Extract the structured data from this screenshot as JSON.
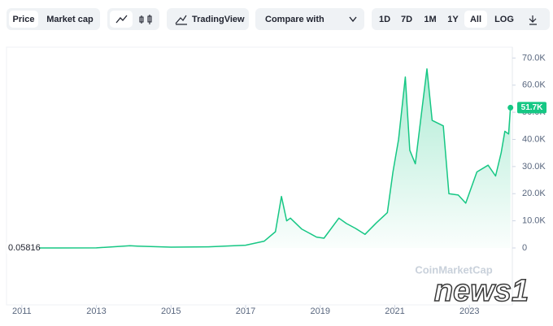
{
  "toolbar": {
    "price": "Price",
    "market_cap": "Market cap",
    "tradingview": "TradingView",
    "compare": "Compare with",
    "ranges": [
      "1D",
      "7D",
      "1M",
      "1Y",
      "All",
      "LOG"
    ]
  },
  "watermarks": {
    "source": "CoinMarketCap",
    "agency": "news1"
  },
  "chart_data": {
    "type": "line",
    "series": [
      {
        "name": "Price",
        "color": "#16c784",
        "x": [
          2010.6,
          2012,
          2013,
          2013.9,
          2014.1,
          2015,
          2016,
          2017,
          2017.5,
          2017.8,
          2017.96,
          2018.1,
          2018.2,
          2018.5,
          2018.9,
          2019.1,
          2019.5,
          2019.7,
          2019.95,
          2020.2,
          2020.5,
          2020.8,
          2020.95,
          2021.1,
          2021.28,
          2021.4,
          2021.55,
          2021.7,
          2021.86,
          2022.0,
          2022.3,
          2022.45,
          2022.7,
          2022.9,
          2023.2,
          2023.5,
          2023.7,
          2023.85,
          2023.95,
          2024.05,
          2024.1
        ],
        "values": [
          0.06,
          5,
          13,
          800,
          700,
          300,
          430,
          1000,
          2500,
          6000,
          19000,
          10000,
          11000,
          7000,
          4000,
          3600,
          11000,
          9000,
          7200,
          5000,
          9200,
          13000,
          28000,
          40000,
          63000,
          36000,
          31000,
          48000,
          66000,
          47000,
          45000,
          20000,
          19500,
          16500,
          28000,
          30500,
          26500,
          35000,
          43000,
          42000,
          51700
        ]
      }
    ],
    "start_label": "0.05816",
    "last_label": "51.7K",
    "xlim": [
      2010.59,
      2024.15
    ],
    "xticks": [
      2011,
      2013,
      2015,
      2017,
      2019,
      2021,
      2023
    ],
    "ylim": [
      -3000,
      74000
    ],
    "yticks": [
      0,
      {
        "value": 10000,
        "label": "10.0K"
      },
      {
        "value": 20000,
        "label": "20.0K"
      },
      {
        "value": 30000,
        "label": "30.0K"
      },
      {
        "value": 40000,
        "label": "40.0K"
      },
      {
        "value": 50000,
        "label": "50.0K"
      },
      {
        "value": 60000,
        "label": "60.0K"
      },
      {
        "value": 70000,
        "label": "70.0K"
      }
    ],
    "grid": false
  }
}
